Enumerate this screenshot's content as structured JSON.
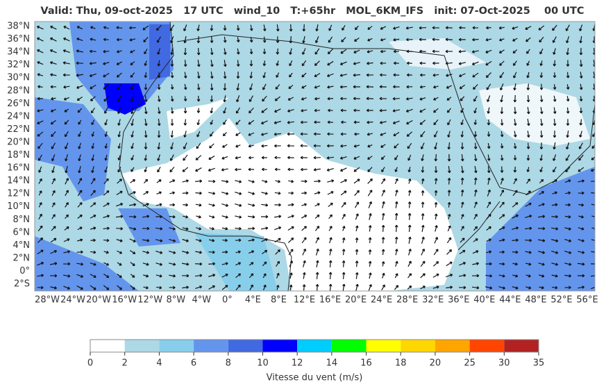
{
  "header": {
    "title": "Valid: Thu, 09-oct-2025   17 UTC   wind_10   T:+65hr   MOL_6KM_IFS   init: 07-Oct-2025    00 UTC"
  },
  "map": {
    "lat_labels": [
      "38°N",
      "36°N",
      "34°N",
      "32°N",
      "30°N",
      "28°N",
      "26°N",
      "24°N",
      "22°N",
      "20°N",
      "18°N",
      "16°N",
      "14°N",
      "12°N",
      "10°N",
      "8°N",
      "6°N",
      "4°N",
      "2°N",
      "0°",
      "2°S"
    ],
    "lon_labels": [
      "28°W",
      "24°W",
      "20°W",
      "16°W",
      "12°W",
      "8°W",
      "4°W",
      "0°",
      "4°E",
      "8°E",
      "12°E",
      "16°E",
      "20°E",
      "24°E",
      "28°E",
      "32°E",
      "36°E",
      "40°E",
      "44°E",
      "48°E",
      "52°E",
      "56°E"
    ]
  },
  "colorbar": {
    "bounds": [
      0,
      2,
      4,
      6,
      8,
      10,
      12,
      14,
      16,
      18,
      20,
      25,
      30,
      35
    ],
    "colors": [
      "#ffffff",
      "#add8e6",
      "#87ceeb",
      "#6495ed",
      "#4169e1",
      "#0000ff",
      "#00ccff",
      "#00ff00",
      "#ffff00",
      "#ffd700",
      "#ffa500",
      "#ff4500",
      "#b22222"
    ],
    "label": "Vitesse du vent (m/s)"
  }
}
